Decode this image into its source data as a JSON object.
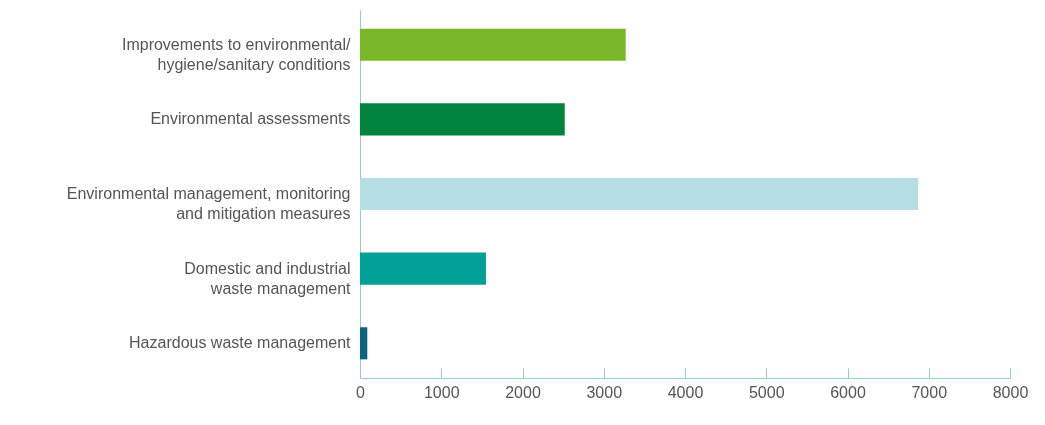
{
  "chart_data": {
    "type": "bar",
    "orientation": "horizontal",
    "categories": [
      "Improvements to environmental/\nhygiene/sanitary conditions",
      "Environmental assessments",
      "Environmental management, monitoring\nand mitigation measures",
      "Domestic and industrial\nwaste management",
      "Hazardous waste management"
    ],
    "values": [
      3270,
      2520,
      6870,
      1550,
      90
    ],
    "colors": [
      "#7ab829",
      "#00843d",
      "#b5dfe3",
      "#00a096",
      "#0d6481"
    ],
    "xlim": [
      0,
      8000
    ],
    "xticks": [
      0,
      1000,
      2000,
      3000,
      4000,
      5000,
      6000,
      7000,
      8000
    ],
    "grid": false
  }
}
